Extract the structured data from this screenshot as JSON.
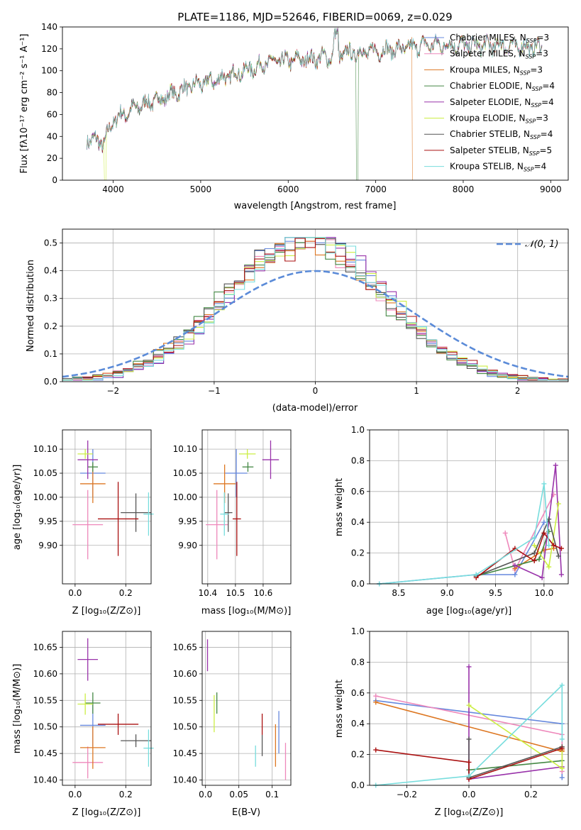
{
  "colors": {
    "Chabrier MILES": "#6688dd",
    "Salpeter MILES": "#ee88bb",
    "Kroupa MILES": "#dd7722",
    "Chabrier ELODIE": "#448844",
    "Salpeter ELODIE": "#9933aa",
    "Kroupa ELODIE": "#ccee44",
    "Chabrier STELIB": "#555555",
    "Salpeter STELIB": "#aa1111",
    "Kroupa STELIB": "#77dddd",
    "normal": "#5b8bd8"
  },
  "chart_data": [
    {
      "id": "spectrum",
      "type": "line",
      "title": "PLATE=1186, MJD=52646, FIBERID=0069, z=0.029",
      "xlabel": "wavelength [Angstrom, rest frame]",
      "ylabel": "Flux [fλ10⁻¹⁷ erg cm⁻² s⁻¹ A⁻¹]",
      "xlim": [
        3420,
        9200
      ],
      "ylim": [
        0,
        140
      ],
      "xticks": [
        4000,
        5000,
        6000,
        7000,
        8000,
        9000
      ],
      "yticks": [
        0,
        20,
        40,
        60,
        80,
        100,
        120,
        140
      ],
      "grid": false,
      "legend_position": "right",
      "continuum": [
        [
          3700,
          38
        ],
        [
          3900,
          34
        ],
        [
          4000,
          55
        ],
        [
          4300,
          68
        ],
        [
          4600,
          76
        ],
        [
          4900,
          86
        ],
        [
          5200,
          92
        ],
        [
          5500,
          100
        ],
        [
          5800,
          108
        ],
        [
          6100,
          110
        ],
        [
          6400,
          112
        ],
        [
          6700,
          116
        ],
        [
          7000,
          118
        ],
        [
          7300,
          120
        ],
        [
          7600,
          124
        ],
        [
          8000,
          123
        ],
        [
          8500,
          123
        ],
        [
          8900,
          121
        ]
      ],
      "drops": [
        [
          3910,
          0
        ],
        [
          6790,
          0
        ],
        [
          7420,
          0
        ]
      ],
      "series": [
        {
          "name": "Chabrier MILES, N_SSP=3",
          "label": "Chabrier MILES, N",
          "sub": "SSP",
          "suffix": "=3"
        },
        {
          "name": "Salpeter MILES, N_SSP=3",
          "label": "Salpeter MILES, N",
          "sub": "SSP",
          "suffix": "=3"
        },
        {
          "name": "Kroupa MILES, N_SSP=3",
          "label": "Kroupa MILES, N",
          "sub": "SSP",
          "suffix": "=3"
        },
        {
          "name": "Chabrier ELODIE, N_SSP=4",
          "label": "Chabrier ELODIE, N",
          "sub": "SSP",
          "suffix": "=4"
        },
        {
          "name": "Salpeter ELODIE, N_SSP=4",
          "label": "Salpeter ELODIE, N",
          "sub": "SSP",
          "suffix": "=4"
        },
        {
          "name": "Kroupa ELODIE, N_SSP=3",
          "label": "Kroupa ELODIE, N",
          "sub": "SSP",
          "suffix": "=3"
        },
        {
          "name": "Chabrier STELIB, N_SSP=4",
          "label": "Chabrier STELIB, N",
          "sub": "SSP",
          "suffix": "=4"
        },
        {
          "name": "Salpeter STELIB, N_SSP=5",
          "label": "Salpeter STELIB, N",
          "sub": "SSP",
          "suffix": "=5"
        },
        {
          "name": "Kroupa STELIB, N_SSP=4",
          "label": "Kroupa STELIB, N",
          "sub": "SSP",
          "suffix": "=4"
        }
      ]
    },
    {
      "id": "residuals",
      "type": "line",
      "xlabel": "(data-model)/error",
      "ylabel": "Normed distribution",
      "xlim": [
        -2.5,
        2.5
      ],
      "ylim": [
        0,
        0.55
      ],
      "xticks": [
        -2,
        -1,
        0,
        1,
        2
      ],
      "yticks": [
        0.0,
        0.1,
        0.2,
        0.3,
        0.4,
        0.5
      ],
      "grid": true,
      "legend_position": "top-right",
      "legend_label": "𝒩(0, 1)",
      "bin_width": 0.1,
      "reference": {
        "name": "N(0,1)",
        "mean": 0,
        "sigma": 1,
        "style": "dashed"
      }
    },
    {
      "id": "age_vs_Z",
      "type": "scatter",
      "xlabel": "Z [log₁₀(Z/Z⊙)]",
      "ylabel": "age  [log₁₀(age/yr)]",
      "xlim": [
        -0.05,
        0.3
      ],
      "ylim": [
        9.82,
        10.14
      ],
      "xticks": [
        0.0,
        0.2
      ],
      "yticks": [
        9.9,
        9.95,
        10.0,
        10.05,
        10.1
      ],
      "grid": true,
      "points": [
        {
          "series": "Chabrier MILES",
          "x": 0.07,
          "xerr": 0.05,
          "y": 10.05,
          "yerr": 0.05
        },
        {
          "series": "Salpeter MILES",
          "x": 0.05,
          "xerr": 0.06,
          "y": 9.943,
          "yerr": 0.072
        },
        {
          "series": "Kroupa MILES",
          "x": 0.07,
          "xerr": 0.05,
          "y": 10.028,
          "yerr": 0.04
        },
        {
          "series": "Chabrier ELODIE",
          "x": 0.07,
          "xerr": 0.02,
          "y": 10.063,
          "yerr": 0.01
        },
        {
          "series": "Salpeter ELODIE",
          "x": 0.05,
          "xerr": 0.04,
          "y": 10.078,
          "yerr": 0.04
        },
        {
          "series": "Kroupa ELODIE",
          "x": 0.04,
          "xerr": 0.03,
          "y": 10.09,
          "yerr": 0.01
        },
        {
          "series": "Chabrier STELIB",
          "x": 0.24,
          "xerr": 0.06,
          "y": 9.968,
          "yerr": 0.04
        },
        {
          "series": "Salpeter STELIB",
          "x": 0.17,
          "xerr": 0.08,
          "y": 9.955,
          "yerr": 0.077
        },
        {
          "series": "Kroupa STELIB",
          "x": 0.29,
          "xerr": 0.02,
          "y": 9.965,
          "yerr": 0.045
        }
      ]
    },
    {
      "id": "age_vs_mass",
      "type": "scatter",
      "xlabel": "mass [log₁₀(M/M⊙)]",
      "ylabel": "",
      "xlim": [
        10.38,
        10.7
      ],
      "ylim": [
        9.82,
        10.14
      ],
      "xticks": [
        10.4,
        10.5,
        10.6
      ],
      "yticks": [
        9.9,
        9.95,
        10.0,
        10.05,
        10.1
      ],
      "grid": true,
      "points": [
        {
          "series": "Chabrier MILES",
          "x": 10.503,
          "xerr": 0.04,
          "y": 10.05,
          "yerr": 0.05
        },
        {
          "series": "Salpeter MILES",
          "x": 10.433,
          "xerr": 0.04,
          "y": 9.943,
          "yerr": 0.072
        },
        {
          "series": "Kroupa MILES",
          "x": 10.461,
          "xerr": 0.04,
          "y": 10.028,
          "yerr": 0.04
        },
        {
          "series": "Chabrier ELODIE",
          "x": 10.545,
          "xerr": 0.02,
          "y": 10.063,
          "yerr": 0.01
        },
        {
          "series": "Salpeter ELODIE",
          "x": 10.627,
          "xerr": 0.03,
          "y": 10.078,
          "yerr": 0.04
        },
        {
          "series": "Kroupa ELODIE",
          "x": 10.543,
          "xerr": 0.03,
          "y": 10.09,
          "yerr": 0.01
        },
        {
          "series": "Chabrier STELIB",
          "x": 10.474,
          "xerr": 0.015,
          "y": 9.968,
          "yerr": 0.04
        },
        {
          "series": "Salpeter STELIB",
          "x": 10.505,
          "xerr": 0.015,
          "y": 9.955,
          "yerr": 0.077
        },
        {
          "series": "Kroupa STELIB",
          "x": 10.46,
          "xerr": 0.015,
          "y": 9.965,
          "yerr": 0.045
        }
      ]
    },
    {
      "id": "weight_vs_age",
      "type": "line",
      "xlabel": "age  [log₁₀(age/yr)]",
      "ylabel": "mass weight",
      "xlim": [
        8.2,
        10.25
      ],
      "ylim": [
        0,
        1
      ],
      "xticks": [
        8.5,
        9.0,
        9.5,
        10.0
      ],
      "yticks": [
        0.0,
        0.2,
        0.4,
        0.6,
        0.8,
        1.0
      ],
      "grid": true,
      "series": [
        {
          "name": "Chabrier MILES",
          "x": [
            8.3,
            9.3,
            9.7,
            10.0
          ],
          "y": [
            0.0,
            0.06,
            0.06,
            0.4
          ]
        },
        {
          "name": "Salpeter MILES",
          "x": [
            9.6,
            9.7,
            10.1
          ],
          "y": [
            0.33,
            0.09,
            0.58
          ]
        },
        {
          "name": "Kroupa MILES",
          "x": [
            9.7,
            10.0,
            10.1
          ],
          "y": [
            0.1,
            0.22,
            0.23
          ]
        },
        {
          "name": "Chabrier ELODIE",
          "x": [
            9.3,
            9.95,
            10.05
          ],
          "y": [
            0.05,
            0.16,
            0.34
          ]
        },
        {
          "name": "Salpeter ELODIE",
          "x": [
            9.7,
            9.98,
            10.12,
            10.18
          ],
          "y": [
            0.12,
            0.04,
            0.77,
            0.06
          ]
        },
        {
          "name": "Kroupa ELODIE",
          "x": [
            9.9,
            10.05,
            10.15
          ],
          "y": [
            0.25,
            0.11,
            0.52
          ]
        },
        {
          "name": "Chabrier STELIB",
          "x": [
            9.3,
            9.9,
            10.05,
            10.15
          ],
          "y": [
            0.05,
            0.2,
            0.42,
            0.18
          ]
        },
        {
          "name": "Salpeter STELIB",
          "x": [
            9.3,
            9.7,
            9.9,
            10.0,
            10.1,
            10.18
          ],
          "y": [
            0.04,
            0.23,
            0.15,
            0.33,
            0.25,
            0.23
          ]
        },
        {
          "name": "Kroupa STELIB",
          "x": [
            8.3,
            9.3,
            9.9,
            10.0,
            10.05
          ],
          "y": [
            0.0,
            0.06,
            0.3,
            0.65,
            0.25
          ]
        }
      ]
    },
    {
      "id": "mass_vs_Z",
      "type": "scatter",
      "xlabel": "Z [log₁₀(Z/Z⊙)]",
      "ylabel": "mass [log₁₀(M/M⊙)]",
      "xlim": [
        -0.05,
        0.3
      ],
      "ylim": [
        10.39,
        10.68
      ],
      "xticks": [
        0.0,
        0.2
      ],
      "yticks": [
        10.4,
        10.45,
        10.5,
        10.55,
        10.6,
        10.65
      ],
      "grid": true,
      "points": [
        {
          "series": "Chabrier MILES",
          "x": 0.07,
          "xerr": 0.05,
          "y": 10.503,
          "yerr": 0.04
        },
        {
          "series": "Salpeter MILES",
          "x": 0.05,
          "xerr": 0.06,
          "y": 10.433,
          "yerr": 0.03
        },
        {
          "series": "Kroupa MILES",
          "x": 0.07,
          "xerr": 0.05,
          "y": 10.461,
          "yerr": 0.04
        },
        {
          "series": "Chabrier ELODIE",
          "x": 0.07,
          "xerr": 0.03,
          "y": 10.545,
          "yerr": 0.02
        },
        {
          "series": "Salpeter ELODIE",
          "x": 0.05,
          "xerr": 0.04,
          "y": 10.627,
          "yerr": 0.04
        },
        {
          "series": "Kroupa ELODIE",
          "x": 0.04,
          "xerr": 0.03,
          "y": 10.543,
          "yerr": 0.02
        },
        {
          "series": "Chabrier STELIB",
          "x": 0.24,
          "xerr": 0.06,
          "y": 10.474,
          "yerr": 0.012
        },
        {
          "series": "Salpeter STELIB",
          "x": 0.17,
          "xerr": 0.08,
          "y": 10.505,
          "yerr": 0.02
        },
        {
          "series": "Kroupa STELIB",
          "x": 0.29,
          "xerr": 0.02,
          "y": 10.46,
          "yerr": 0.035
        }
      ]
    },
    {
      "id": "mass_vs_ebv",
      "type": "scatter",
      "xlabel": "E(B-V)",
      "ylabel": "",
      "xlim": [
        -0.005,
        0.128
      ],
      "ylim": [
        10.39,
        10.68
      ],
      "xticks": [
        0.0,
        0.05,
        0.1
      ],
      "yticks": [
        10.4,
        10.45,
        10.5,
        10.55,
        10.6,
        10.65
      ],
      "grid": true,
      "points": [
        {
          "series": "Chabrier MILES",
          "x": 0.11,
          "y": 10.49,
          "yerr": 0.04
        },
        {
          "series": "Salpeter MILES",
          "x": 0.12,
          "y": 10.435,
          "yerr": 0.035
        },
        {
          "series": "Kroupa MILES",
          "x": 0.105,
          "y": 10.465,
          "yerr": 0.04
        },
        {
          "series": "Chabrier ELODIE",
          "x": 0.017,
          "y": 10.545,
          "yerr": 0.02
        },
        {
          "series": "Salpeter ELODIE",
          "x": 0.003,
          "y": 10.635,
          "yerr": 0.03
        },
        {
          "series": "Kroupa ELODIE",
          "x": 0.013,
          "y": 10.525,
          "yerr": 0.035
        },
        {
          "series": "Chabrier STELIB",
          "x": 0.085,
          "y": 10.465,
          "yerr": 0.02
        },
        {
          "series": "Salpeter STELIB",
          "x": 0.085,
          "y": 10.505,
          "yerr": 0.02
        },
        {
          "series": "Kroupa STELIB",
          "x": 0.075,
          "y": 10.445,
          "yerr": 0.02
        }
      ]
    },
    {
      "id": "weight_vs_Z",
      "type": "line",
      "xlabel": "Z [log₁₀(Z/Z⊙)]",
      "ylabel": "mass weight",
      "xlim": [
        -0.32,
        0.32
      ],
      "ylim": [
        0,
        1
      ],
      "xticks": [
        -0.2,
        0.0,
        0.2
      ],
      "yticks": [
        0.0,
        0.2,
        0.4,
        0.6,
        0.8,
        1.0
      ],
      "grid": true,
      "series": [
        {
          "name": "Chabrier MILES",
          "x": [
            -0.3,
            0.3,
            0.3
          ],
          "y": [
            0.55,
            0.4,
            0.05
          ]
        },
        {
          "name": "Salpeter MILES",
          "x": [
            -0.3,
            0.3,
            0.3
          ],
          "y": [
            0.58,
            0.33,
            0.09
          ]
        },
        {
          "name": "Kroupa MILES",
          "x": [
            -0.3,
            0.3,
            0.3
          ],
          "y": [
            0.54,
            0.22,
            0.23
          ]
        },
        {
          "name": "Chabrier ELODIE",
          "x": [
            0.0,
            0.0,
            0.3
          ],
          "y": [
            0.05,
            0.1,
            0.16
          ]
        },
        {
          "name": "Salpeter ELODIE",
          "x": [
            0.0,
            0.0,
            0.3
          ],
          "y": [
            0.77,
            0.04,
            0.12
          ]
        },
        {
          "name": "Kroupa ELODIE",
          "x": [
            0.0,
            0.3,
            0.3
          ],
          "y": [
            0.52,
            0.11,
            0.25
          ]
        },
        {
          "name": "Chabrier STELIB",
          "x": [
            0.0,
            0.0,
            0.3
          ],
          "y": [
            0.3,
            0.05,
            0.25
          ]
        },
        {
          "name": "Salpeter STELIB",
          "x": [
            -0.3,
            0.0,
            0.0,
            0.3
          ],
          "y": [
            0.23,
            0.15,
            0.04,
            0.24
          ]
        },
        {
          "name": "Kroupa STELIB",
          "x": [
            -0.3,
            0.0,
            0.3,
            0.3
          ],
          "y": [
            0.0,
            0.06,
            0.65,
            0.3
          ]
        }
      ]
    }
  ]
}
